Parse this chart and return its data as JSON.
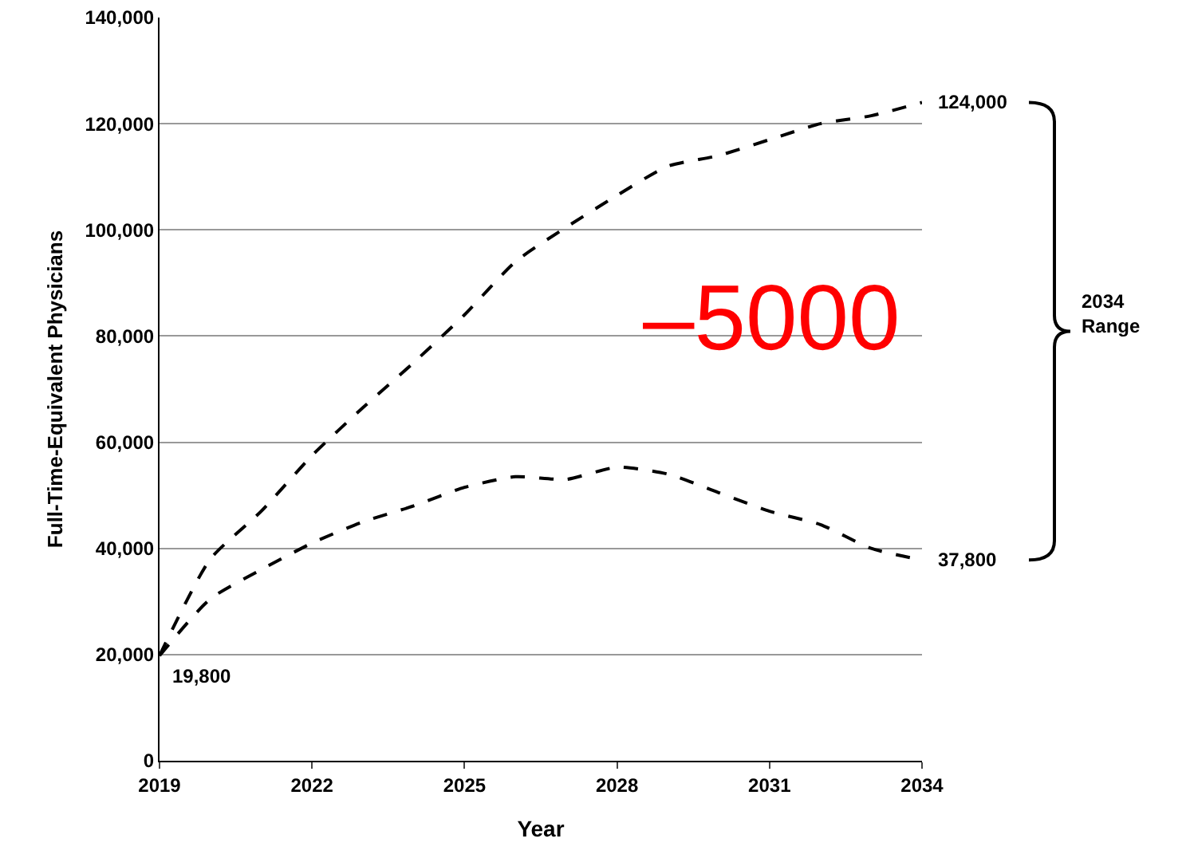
{
  "chart_data": {
    "type": "line",
    "xlabel": "Year",
    "ylabel": "Full-Time-Equivalent Physicians",
    "x": [
      2019,
      2020,
      2021,
      2022,
      2023,
      2024,
      2025,
      2026,
      2027,
      2028,
      2029,
      2030,
      2031,
      2032,
      2033,
      2034
    ],
    "series": [
      {
        "color": "#000000",
        "values": [
          19800,
          38000,
          47000,
          57500,
          66500,
          75000,
          84000,
          94000,
          100500,
          106500,
          112000,
          114000,
          117000,
          120000,
          121500,
          124000
        ],
        "value_labels": [
          null,
          null,
          null,
          null,
          null,
          null,
          null,
          null,
          null,
          null,
          null,
          null,
          null,
          null,
          null,
          "124,000"
        ]
      },
      {
        "color": "#000000",
        "values": [
          19800,
          30500,
          36000,
          41000,
          45000,
          48000,
          51500,
          53500,
          53000,
          55300,
          54000,
          50500,
          47000,
          44500,
          40000,
          37800
        ],
        "value_labels": [
          "19,800",
          null,
          null,
          null,
          null,
          null,
          null,
          null,
          null,
          null,
          null,
          null,
          null,
          null,
          null,
          "37,800"
        ]
      }
    ],
    "xlim": [
      2019,
      2034
    ],
    "xticks": [
      2019,
      2022,
      2025,
      2028,
      2031,
      2034
    ],
    "ylim": [
      0,
      140000
    ],
    "yticks": [
      {
        "value": 0,
        "label": "0"
      },
      {
        "value": 20000,
        "label": "20,000"
      },
      {
        "value": 40000,
        "label": "40,000"
      },
      {
        "value": 60000,
        "label": "60,000"
      },
      {
        "value": 80000,
        "label": "80,000"
      },
      {
        "value": 100000,
        "label": "100,000"
      },
      {
        "value": 120000,
        "label": "120,000"
      },
      {
        "value": 140000,
        "label": "140,000"
      }
    ],
    "grid": "y",
    "legend": false,
    "marker": "none",
    "line_style": "dashed",
    "annotations": [
      "2034\nRange",
      "–5000"
    ]
  }
}
